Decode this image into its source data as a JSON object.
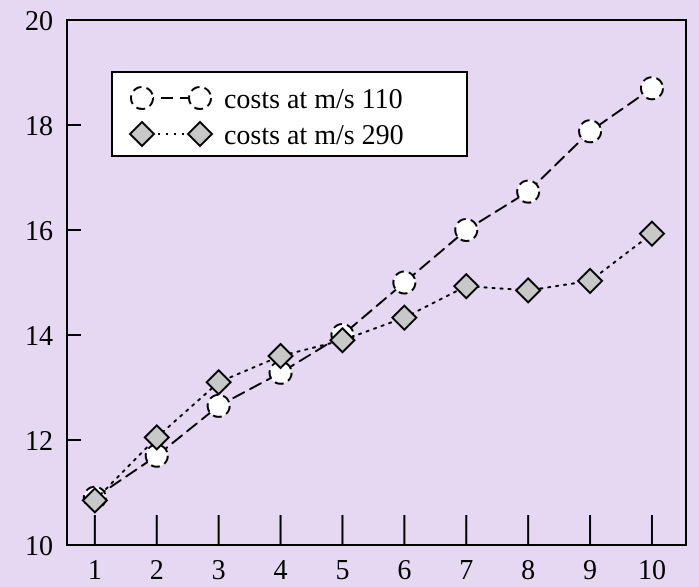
{
  "chart_data": {
    "type": "line",
    "title": "",
    "xlabel": "",
    "ylabel": "",
    "x": [
      1,
      2,
      3,
      4,
      5,
      6,
      7,
      8,
      9,
      10
    ],
    "xlim": [
      0.55,
      10.55
    ],
    "ylim": [
      10,
      20
    ],
    "xticks": [
      1,
      2,
      3,
      4,
      5,
      6,
      7,
      8,
      9,
      10
    ],
    "yticks": [
      10,
      12,
      14,
      16,
      18,
      20
    ],
    "grid": false,
    "legend_position": "top-left",
    "series": [
      {
        "name": "costs at m/s 110",
        "values": [
          10.9,
          11.7,
          12.65,
          13.28,
          14.0,
          15.0,
          16.0,
          16.73,
          17.88,
          18.7
        ],
        "line_style": "dashed",
        "marker": "circle",
        "marker_fill": "#ffffff",
        "color": "#000000"
      },
      {
        "name": "costs at m/s 290",
        "values": [
          10.85,
          12.05,
          13.1,
          13.6,
          13.9,
          14.33,
          14.93,
          14.85,
          15.03,
          15.93
        ],
        "line_style": "dotted",
        "marker": "diamond",
        "marker_fill": "#c8c8c8",
        "color": "#000000"
      }
    ],
    "background_color": "#e6d8f2"
  }
}
